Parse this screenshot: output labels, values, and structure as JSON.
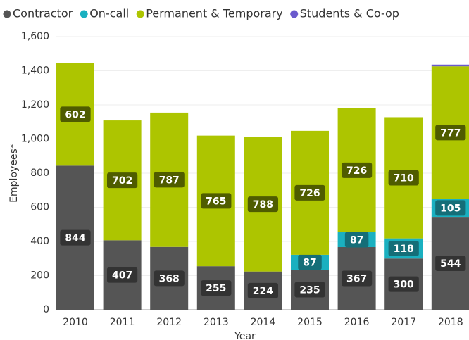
{
  "chart_data": {
    "type": "bar",
    "stacked": true,
    "x_label": "Year",
    "y_label": "Employees*",
    "categories": [
      "2010",
      "2011",
      "2012",
      "2013",
      "2014",
      "2015",
      "2016",
      "2017",
      "2018"
    ],
    "series": [
      {
        "name": "Contractor",
        "color": "#555555",
        "label_color": "#333333",
        "values": [
          844,
          407,
          368,
          255,
          224,
          235,
          367,
          300,
          544
        ]
      },
      {
        "name": "On-call",
        "color": "#1ab0c0",
        "label_color": "#156e78",
        "values": [
          0,
          0,
          0,
          0,
          0,
          87,
          87,
          118,
          105
        ]
      },
      {
        "name": "Permanent & Temporary",
        "color": "#adc500",
        "label_color": "#4f5c00",
        "values": [
          602,
          702,
          787,
          765,
          788,
          726,
          726,
          710,
          777
        ]
      },
      {
        "name": "Students & Co-op",
        "color": "#6a5acd",
        "label_color": "#3d3380",
        "values": [
          0,
          0,
          0,
          0,
          0,
          0,
          0,
          0,
          10
        ]
      }
    ],
    "ylim": [
      0,
      1600
    ],
    "yticks": [
      0,
      {
        "value": 200,
        "label": "200"
      },
      400,
      600,
      800,
      {
        "value": 1000,
        "label": "1,000"
      },
      {
        "value": 1200,
        "label": "1,200"
      },
      {
        "value": 1400,
        "label": "1,400"
      },
      {
        "value": 1600,
        "label": "1,600"
      }
    ],
    "grid": true,
    "legend": "top"
  }
}
